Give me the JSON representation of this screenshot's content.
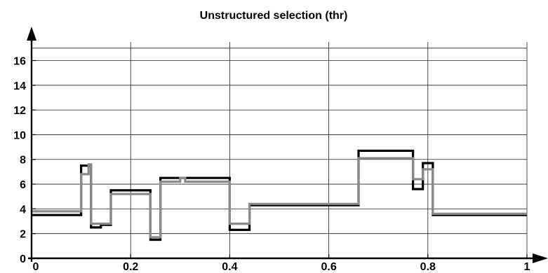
{
  "chart_data": {
    "type": "line",
    "title": "Unstructured selection (thr)",
    "xlabel": "",
    "ylabel": "",
    "xlim": [
      0,
      1
    ],
    "ylim": [
      0,
      17.5
    ],
    "grid": true,
    "x_ticks": [
      0,
      0.2,
      0.4,
      0.6,
      0.8,
      1
    ],
    "x_tick_labels": [
      "0",
      "0.2",
      "0.4",
      "0.6",
      "0.8",
      "1"
    ],
    "y_ticks": [
      0,
      2,
      4,
      6,
      8,
      10,
      12,
      14,
      16
    ],
    "y_tick_labels": [
      "0",
      "2",
      "4",
      "6",
      "8",
      "10",
      "12",
      "14",
      "16"
    ],
    "series": [
      {
        "color": "#000000",
        "style": "step",
        "x": [
          0,
          0.1,
          0.1,
          0.12,
          0.12,
          0.14,
          0.14,
          0.16,
          0.16,
          0.24,
          0.24,
          0.26,
          0.26,
          0.4,
          0.4,
          0.44,
          0.44,
          0.64,
          0.64,
          0.66,
          0.66,
          0.77,
          0.77,
          0.79,
          0.79,
          0.81,
          0.81,
          1.0
        ],
        "y": [
          3.5,
          3.5,
          7.5,
          7.5,
          2.5,
          2.5,
          2.7,
          2.7,
          5.5,
          5.5,
          1.5,
          1.5,
          6.5,
          6.5,
          2.3,
          2.3,
          4.3,
          4.3,
          4.3,
          4.3,
          8.7,
          8.7,
          5.6,
          5.6,
          7.7,
          7.7,
          3.5,
          3.5
        ]
      },
      {
        "color": "#8a8a8a",
        "style": "step",
        "x": [
          0,
          0.1,
          0.1,
          0.115,
          0.115,
          0.12,
          0.12,
          0.14,
          0.14,
          0.16,
          0.16,
          0.24,
          0.24,
          0.26,
          0.26,
          0.3,
          0.3,
          0.31,
          0.31,
          0.4,
          0.4,
          0.44,
          0.44,
          0.64,
          0.64,
          0.66,
          0.66,
          0.77,
          0.77,
          0.79,
          0.79,
          0.81,
          0.81,
          1.0
        ],
        "y": [
          3.8,
          3.8,
          6.8,
          6.8,
          7.6,
          7.6,
          2.8,
          2.8,
          2.8,
          2.8,
          5.2,
          5.2,
          1.7,
          1.7,
          6.2,
          6.2,
          6.5,
          6.5,
          6.2,
          6.2,
          2.8,
          2.8,
          4.4,
          4.4,
          4.4,
          4.4,
          8.1,
          8.1,
          6.4,
          6.4,
          7.2,
          7.2,
          3.6,
          3.6
        ]
      }
    ]
  }
}
